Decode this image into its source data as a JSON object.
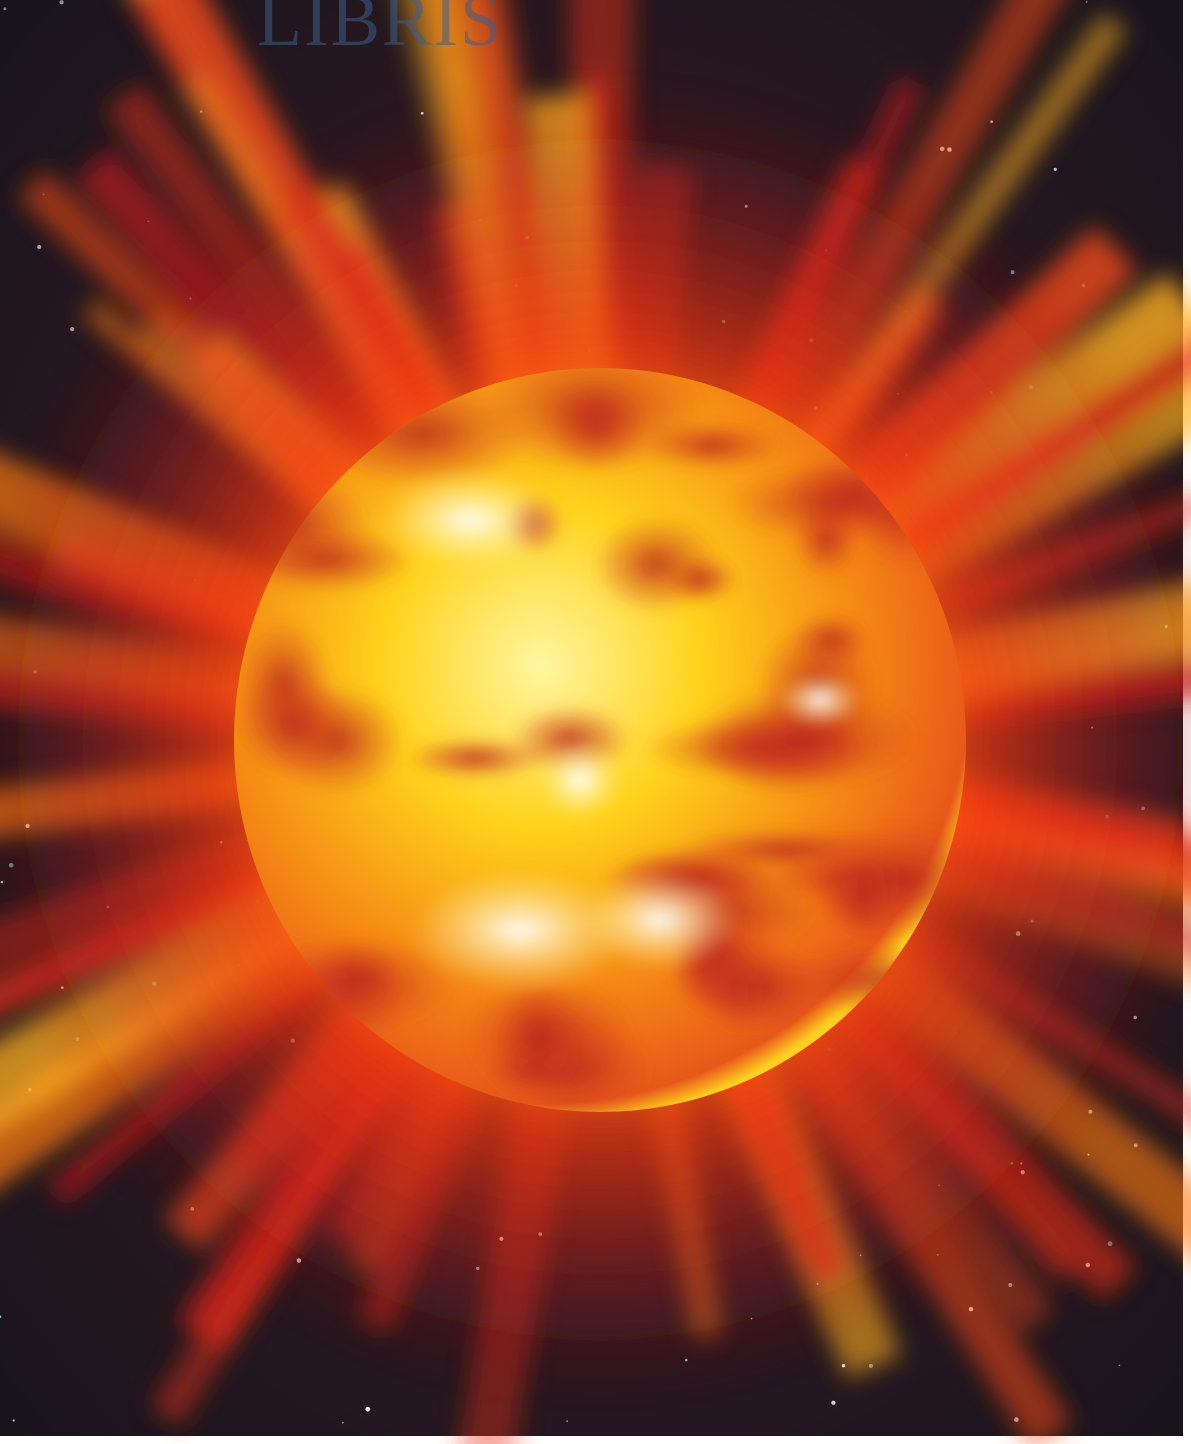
{
  "watermark": "LIBRIS"
}
